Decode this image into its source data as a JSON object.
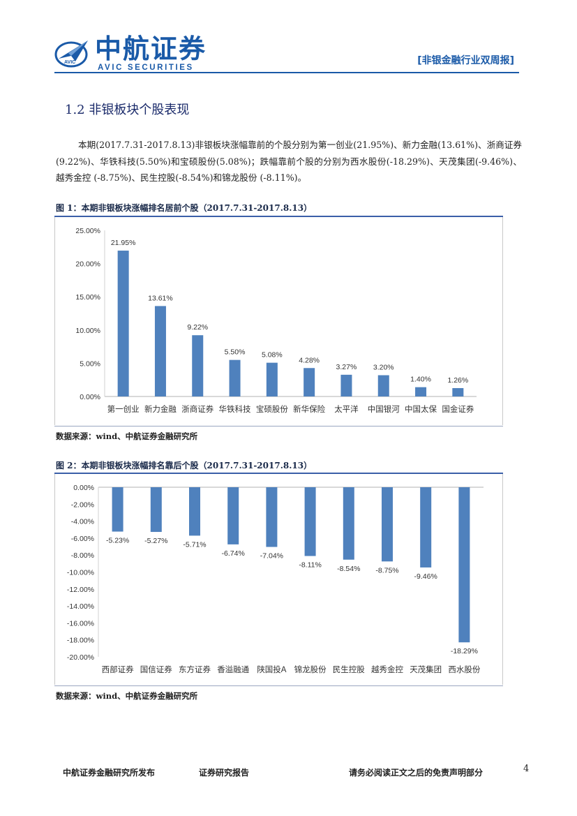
{
  "header": {
    "brand_cn": "中航证券",
    "brand_en": "AVIC SECURITIES",
    "logo_text": "AVIC",
    "report_type": "[非银金融行业双周报]"
  },
  "section_title": "1.2 非银板块个股表现",
  "body_text": "本期(2017.7.31-2017.8.13)非银板块涨幅靠前的个股分别为第一创业(21.95%)、新力金融(13.61%)、浙商证券(9.22%)、华铁科技(5.50%)和宝硕股份(5.08%)；跌幅靠前个股的分别为西水股份(-18.29%)、天茂集团(-9.46%)、越秀金控 (-8.75%)、民生控股(-8.54%)和锦龙股份 (-8.11%)。",
  "figure1": {
    "caption": "图 1：本期非银板块涨幅排名居前个股（2017.7.31-2017.8.13）",
    "source": "数据来源：wind、中航证券金融研究所"
  },
  "figure2": {
    "caption": "图 2：本期非银板块涨幅排名靠后个股（2017.7.31-2017.8.13）",
    "source": "数据来源：wind、中航证券金融研究所"
  },
  "chart_data": [
    {
      "type": "bar",
      "categories": [
        "第一创业",
        "新力金融",
        "浙商证券",
        "华铁科技",
        "宝硕股份",
        "新华保险",
        "太平洋",
        "中国银河",
        "中国太保",
        "国金证券"
      ],
      "values": [
        21.95,
        13.61,
        9.22,
        5.5,
        5.08,
        4.28,
        3.27,
        3.2,
        1.4,
        1.26
      ],
      "data_labels": [
        "21.95%",
        "13.61%",
        "9.22%",
        "5.50%",
        "5.08%",
        "4.28%",
        "3.27%",
        "3.20%",
        "1.40%",
        "1.26%"
      ],
      "ylim": [
        0,
        25
      ],
      "yticks": [
        0,
        5,
        10,
        15,
        20,
        25
      ],
      "ytick_labels": [
        "0.00%",
        "5.00%",
        "10.00%",
        "15.00%",
        "20.00%",
        "25.00%"
      ],
      "grid": false,
      "color": "#4f81bd"
    },
    {
      "type": "bar",
      "categories": [
        "西部证券",
        "国信证券",
        "东方证券",
        "香溢融通",
        "陕国投A",
        "锦龙股份",
        "民生控股",
        "越秀金控",
        "天茂集团",
        "西水股份"
      ],
      "values": [
        -5.23,
        -5.27,
        -5.71,
        -6.74,
        -7.04,
        -8.11,
        -8.54,
        -8.75,
        -9.46,
        -18.29
      ],
      "data_labels": [
        "-5.23%",
        "-5.27%",
        "-5.71%",
        "-6.74%",
        "-7.04%",
        "-8.11%",
        "-8.54%",
        "-8.75%",
        "-9.46%",
        "-18.29%"
      ],
      "ylim": [
        -20,
        0
      ],
      "yticks": [
        0,
        -2,
        -4,
        -6,
        -8,
        -10,
        -12,
        -14,
        -16,
        -18,
        -20
      ],
      "ytick_labels": [
        "0.00%",
        "-2.00%",
        "-4.00%",
        "-6.00%",
        "-8.00%",
        "-10.00%",
        "-12.00%",
        "-14.00%",
        "-16.00%",
        "-18.00%",
        "-20.00%"
      ],
      "grid": false,
      "color": "#4f81bd"
    }
  ],
  "footer": {
    "left": "中航证券金融研究所发布",
    "middle": "证券研究报告",
    "right": "请务必阅读正文之后的免责声明部分",
    "page_number": "4"
  },
  "colors": {
    "brand": "#1a5aa8",
    "bar": "#4f81bd"
  }
}
